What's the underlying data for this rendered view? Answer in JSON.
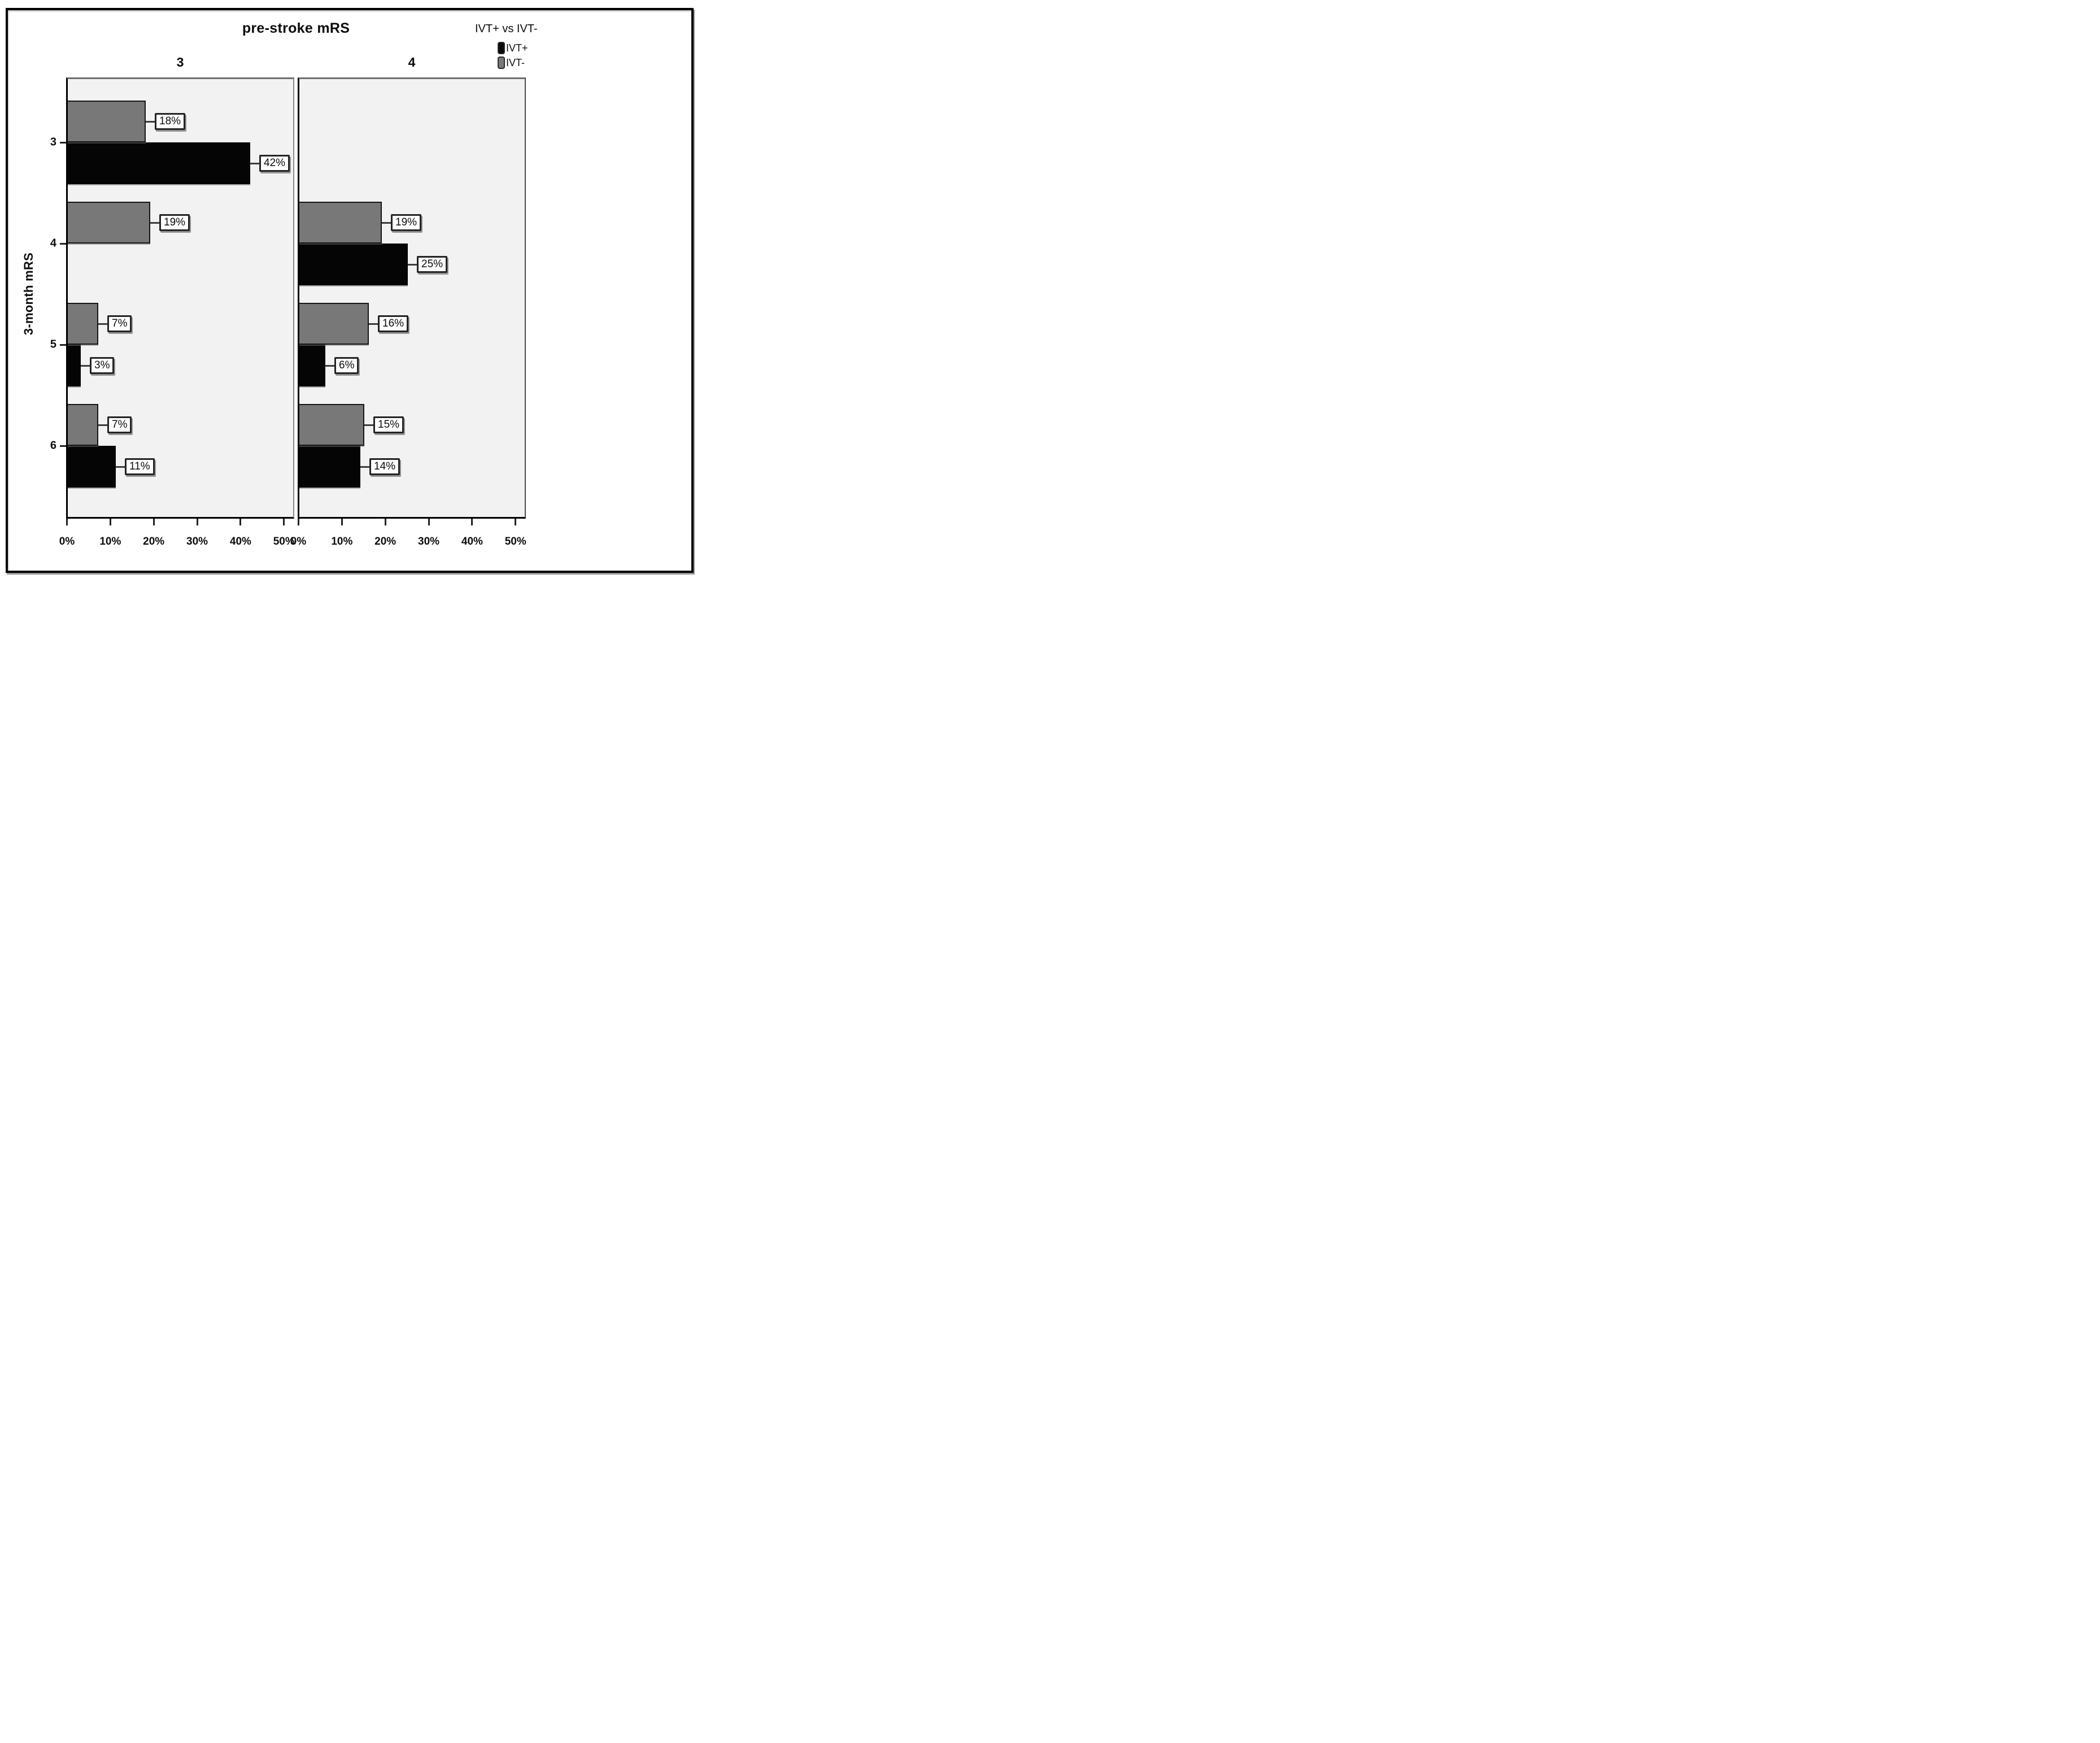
{
  "title": "pre-stroke mRS",
  "legend": {
    "title": "IVT+ vs IVT-",
    "entries": [
      {
        "label": "IVT+",
        "color": "#0a0a0a"
      },
      {
        "label": "IVT-",
        "color": "#7a7a7a"
      }
    ]
  },
  "chart_data": {
    "type": "bar",
    "orientation": "horizontal",
    "title": "pre-stroke mRS",
    "ylabel": "3-month mRS",
    "panel_headers": [
      "3",
      "4"
    ],
    "y_categories": [
      "3",
      "4",
      "5",
      "6"
    ],
    "x_ticks": [
      "0%",
      "10%",
      "20%",
      "30%",
      "40%",
      "50%"
    ],
    "x_tick_values": [
      0,
      10,
      20,
      30,
      40,
      50
    ],
    "xlim": [
      0,
      52.5
    ],
    "grid": false,
    "legend_position": "top-right",
    "value_label_suffix": "%",
    "panels": [
      {
        "header": "3",
        "series": [
          {
            "name": "IVT+",
            "row": "below",
            "color": "#050505",
            "values": [
              42,
              null,
              3,
              11
            ]
          },
          {
            "name": "IVT-",
            "row": "above",
            "color": "#787878",
            "values": [
              18,
              19,
              7,
              7
            ]
          }
        ]
      },
      {
        "header": "4",
        "series": [
          {
            "name": "IVT+",
            "row": "below",
            "color": "#050505",
            "values": [
              null,
              25,
              6,
              14
            ]
          },
          {
            "name": "IVT-",
            "row": "above",
            "color": "#787878",
            "values": [
              null,
              19,
              16,
              15
            ]
          }
        ]
      }
    ]
  },
  "colors": {
    "panel_background": "#f2f2f2",
    "bar_ivt_plus": "#050505",
    "bar_ivt_minus": "#787878",
    "frame": "#000000"
  }
}
